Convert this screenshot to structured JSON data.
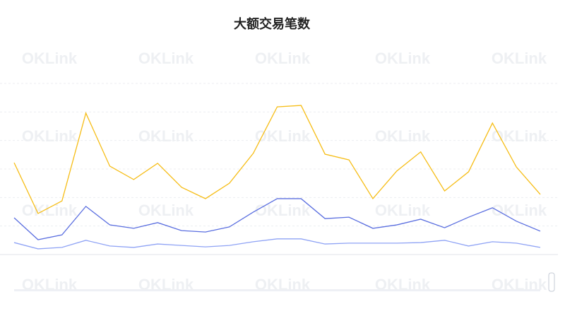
{
  "chart_data": {
    "type": "line",
    "title": "大额交易笔数",
    "watermark": "OKLink",
    "categories": [
      null,
      null,
      null,
      null,
      null,
      null,
      null,
      null,
      null,
      null,
      null,
      null,
      null,
      null,
      null,
      null,
      null,
      null,
      null,
      null,
      null,
      null,
      null
    ],
    "series": [
      {
        "color": "#f6bd16",
        "values": [
          3.22,
          1.44,
          1.88,
          4.96,
          3.1,
          2.63,
          3.2,
          2.36,
          1.96,
          2.5,
          3.55,
          5.18,
          5.23,
          3.52,
          3.32,
          1.96,
          2.93,
          3.6,
          2.23,
          2.9,
          4.61,
          3.07,
          2.11
        ]
      },
      {
        "color": "#5b6fe0",
        "values": [
          1.29,
          0.52,
          0.69,
          1.69,
          1.04,
          0.92,
          1.12,
          0.84,
          0.79,
          0.97,
          1.49,
          1.96,
          1.96,
          1.26,
          1.31,
          0.92,
          1.04,
          1.24,
          0.94,
          1.31,
          1.64,
          1.17,
          0.82
        ]
      },
      {
        "color": "#8fa3f5",
        "values": [
          0.42,
          0.2,
          0.25,
          0.5,
          0.3,
          0.25,
          0.37,
          0.32,
          0.27,
          0.32,
          0.45,
          0.55,
          0.55,
          0.37,
          0.4,
          0.4,
          0.4,
          0.42,
          0.5,
          0.3,
          0.45,
          0.4,
          0.25
        ]
      }
    ],
    "ylim": [
      0,
      6
    ],
    "yticks": [
      0,
      1,
      2,
      3,
      4,
      5,
      6
    ],
    "grid": true,
    "show_tick_labels": false
  }
}
